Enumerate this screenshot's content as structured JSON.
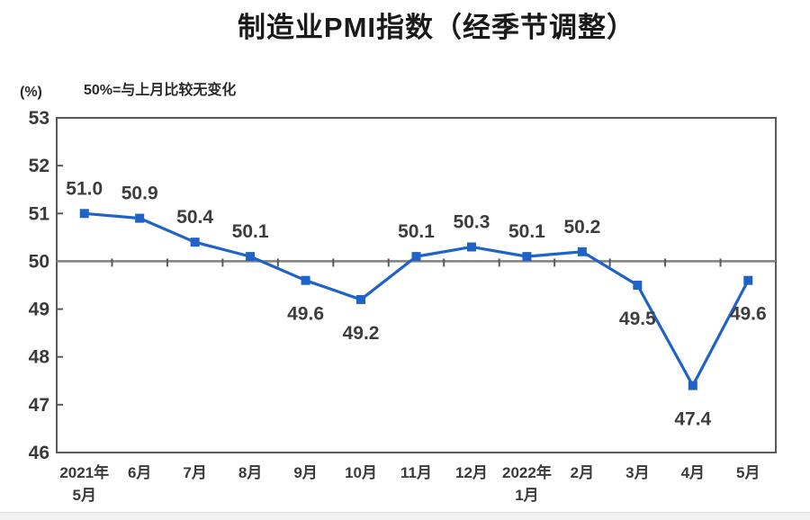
{
  "chart_data": {
    "type": "line",
    "title": "制造业PMI指数（经季节调整）",
    "subtitle": "50%=与上月比较无变化",
    "unit_label": "(%)",
    "categories": [
      "2021年\n5月",
      "6月",
      "7月",
      "8月",
      "9月",
      "10月",
      "11月",
      "12月",
      "2022年\n1月",
      "2月",
      "3月",
      "4月",
      "5月"
    ],
    "values": [
      51.0,
      50.9,
      50.4,
      50.1,
      49.6,
      49.2,
      50.1,
      50.3,
      50.1,
      50.2,
      49.5,
      47.4,
      49.6
    ],
    "point_labels": [
      "51.0",
      "50.9",
      "50.4",
      "50.1",
      "49.6",
      "49.2",
      "50.1",
      "50.3",
      "50.1",
      "50.2",
      "49.5",
      "47.4",
      "49.6"
    ],
    "ylim": [
      46,
      53
    ],
    "ytick_step": 1,
    "yticks": [
      53,
      52,
      51,
      50,
      49,
      48,
      47,
      46
    ],
    "reference_line": 50,
    "marker": "square",
    "grid": false,
    "legend": "none",
    "colors": {
      "line": "#1f63c8",
      "marker": "#1f63c8",
      "reference_line": "#7f7f7f",
      "plot_border": "#595959",
      "tick": "#595959",
      "data_label": "#3d3d3d",
      "axis_label": "#3a3a3a"
    }
  }
}
